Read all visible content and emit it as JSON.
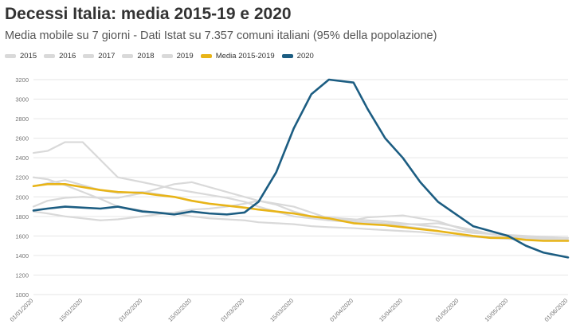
{
  "title": "Decessi Italia: media 2015-19 e 2020",
  "subtitle": "Media mobile su 7 giorni - Dati Istat su 7.357 comuni italiani (95% della popolazione)",
  "chart_data": {
    "type": "line",
    "title": "Decessi Italia: media 2015-19 e 2020",
    "subtitle": "Media mobile su 7 giorni - Dati Istat su 7.357 comuni italiani (95% della popolazione)",
    "xlabel": "",
    "ylabel": "",
    "ylim": [
      1000,
      3200
    ],
    "y_ticks": [
      1000,
      1200,
      1400,
      1600,
      1800,
      2000,
      2200,
      2400,
      2600,
      2800,
      3000,
      3200
    ],
    "x_ticks": [
      "01/01/2020",
      "15/01/2020",
      "01/02/2020",
      "15/02/2020",
      "01/03/2020",
      "15/03/2020",
      "01/04/2020",
      "15/04/2020",
      "01/05/2020",
      "15/05/2020",
      "01/06/2020"
    ],
    "grid": true,
    "legend_position": "top-left",
    "x": [
      "01/01",
      "05/01",
      "10/01",
      "15/01",
      "20/01",
      "25/01",
      "01/02",
      "05/02",
      "10/02",
      "15/02",
      "20/02",
      "25/02",
      "01/03",
      "05/03",
      "10/03",
      "15/03",
      "20/03",
      "25/03",
      "01/04",
      "05/04",
      "10/04",
      "15/04",
      "20/04",
      "25/04",
      "01/05",
      "05/05",
      "10/05",
      "15/05",
      "20/05",
      "25/05",
      "01/06"
    ],
    "series": [
      {
        "name": "2015",
        "color": "#d9d9d9",
        "values": [
          2200,
          2180,
          2120,
          2050,
          1980,
          1900,
          1860,
          1840,
          1830,
          1800,
          1780,
          1770,
          1760,
          1740,
          1730,
          1720,
          1700,
          1690,
          1680,
          1670,
          1660,
          1650,
          1640,
          1620,
          1600,
          1590,
          1580,
          1570,
          1560,
          1560,
          1550
        ]
      },
      {
        "name": "2016",
        "color": "#d9d9d9",
        "values": [
          2450,
          2470,
          2560,
          2560,
          2380,
          2200,
          2150,
          2120,
          2080,
          2050,
          2020,
          1990,
          1950,
          1900,
          1850,
          1800,
          1780,
          1760,
          1740,
          1730,
          1720,
          1700,
          1680,
          1650,
          1620,
          1600,
          1590,
          1580,
          1570,
          1560,
          1560
        ]
      },
      {
        "name": "2017",
        "color": "#d9d9d9",
        "values": [
          2110,
          2140,
          2170,
          2120,
          2070,
          2040,
          2050,
          2030,
          2000,
          1960,
          1930,
          1910,
          1890,
          1870,
          1850,
          1830,
          1800,
          1790,
          1770,
          1760,
          1750,
          1730,
          1710,
          1690,
          1650,
          1630,
          1620,
          1610,
          1600,
          1590,
          1580
        ]
      },
      {
        "name": "2018",
        "color": "#d9d9d9",
        "values": [
          1900,
          1960,
          1990,
          2000,
          1990,
          1990,
          2040,
          2080,
          2130,
          2150,
          2100,
          2050,
          2000,
          1960,
          1930,
          1900,
          1840,
          1780,
          1750,
          1740,
          1730,
          1720,
          1720,
          1730,
          1690,
          1660,
          1620,
          1600,
          1580,
          1570,
          1560
        ]
      },
      {
        "name": "2019",
        "color": "#d9d9d9",
        "values": [
          1850,
          1830,
          1800,
          1780,
          1760,
          1770,
          1800,
          1820,
          1840,
          1870,
          1880,
          1900,
          1930,
          1960,
          1920,
          1850,
          1800,
          1760,
          1760,
          1790,
          1800,
          1810,
          1780,
          1750,
          1680,
          1640,
          1620,
          1600,
          1590,
          1580,
          1580
        ]
      },
      {
        "name": "Media 2015-2019",
        "color": "#e8b417",
        "values": [
          2110,
          2130,
          2130,
          2100,
          2070,
          2050,
          2040,
          2020,
          2000,
          1960,
          1930,
          1910,
          1890,
          1870,
          1850,
          1830,
          1800,
          1780,
          1730,
          1720,
          1710,
          1690,
          1670,
          1650,
          1620,
          1600,
          1580,
          1580,
          1560,
          1550,
          1550
        ]
      },
      {
        "name": "2020",
        "color": "#1c5d82",
        "values": [
          1860,
          1880,
          1900,
          1890,
          1880,
          1900,
          1850,
          1840,
          1820,
          1850,
          1830,
          1820,
          1840,
          1950,
          2250,
          2700,
          3050,
          3200,
          3170,
          2900,
          2600,
          2400,
          2150,
          1950,
          1800,
          1700,
          1650,
          1600,
          1500,
          1430,
          1380
        ]
      }
    ]
  }
}
